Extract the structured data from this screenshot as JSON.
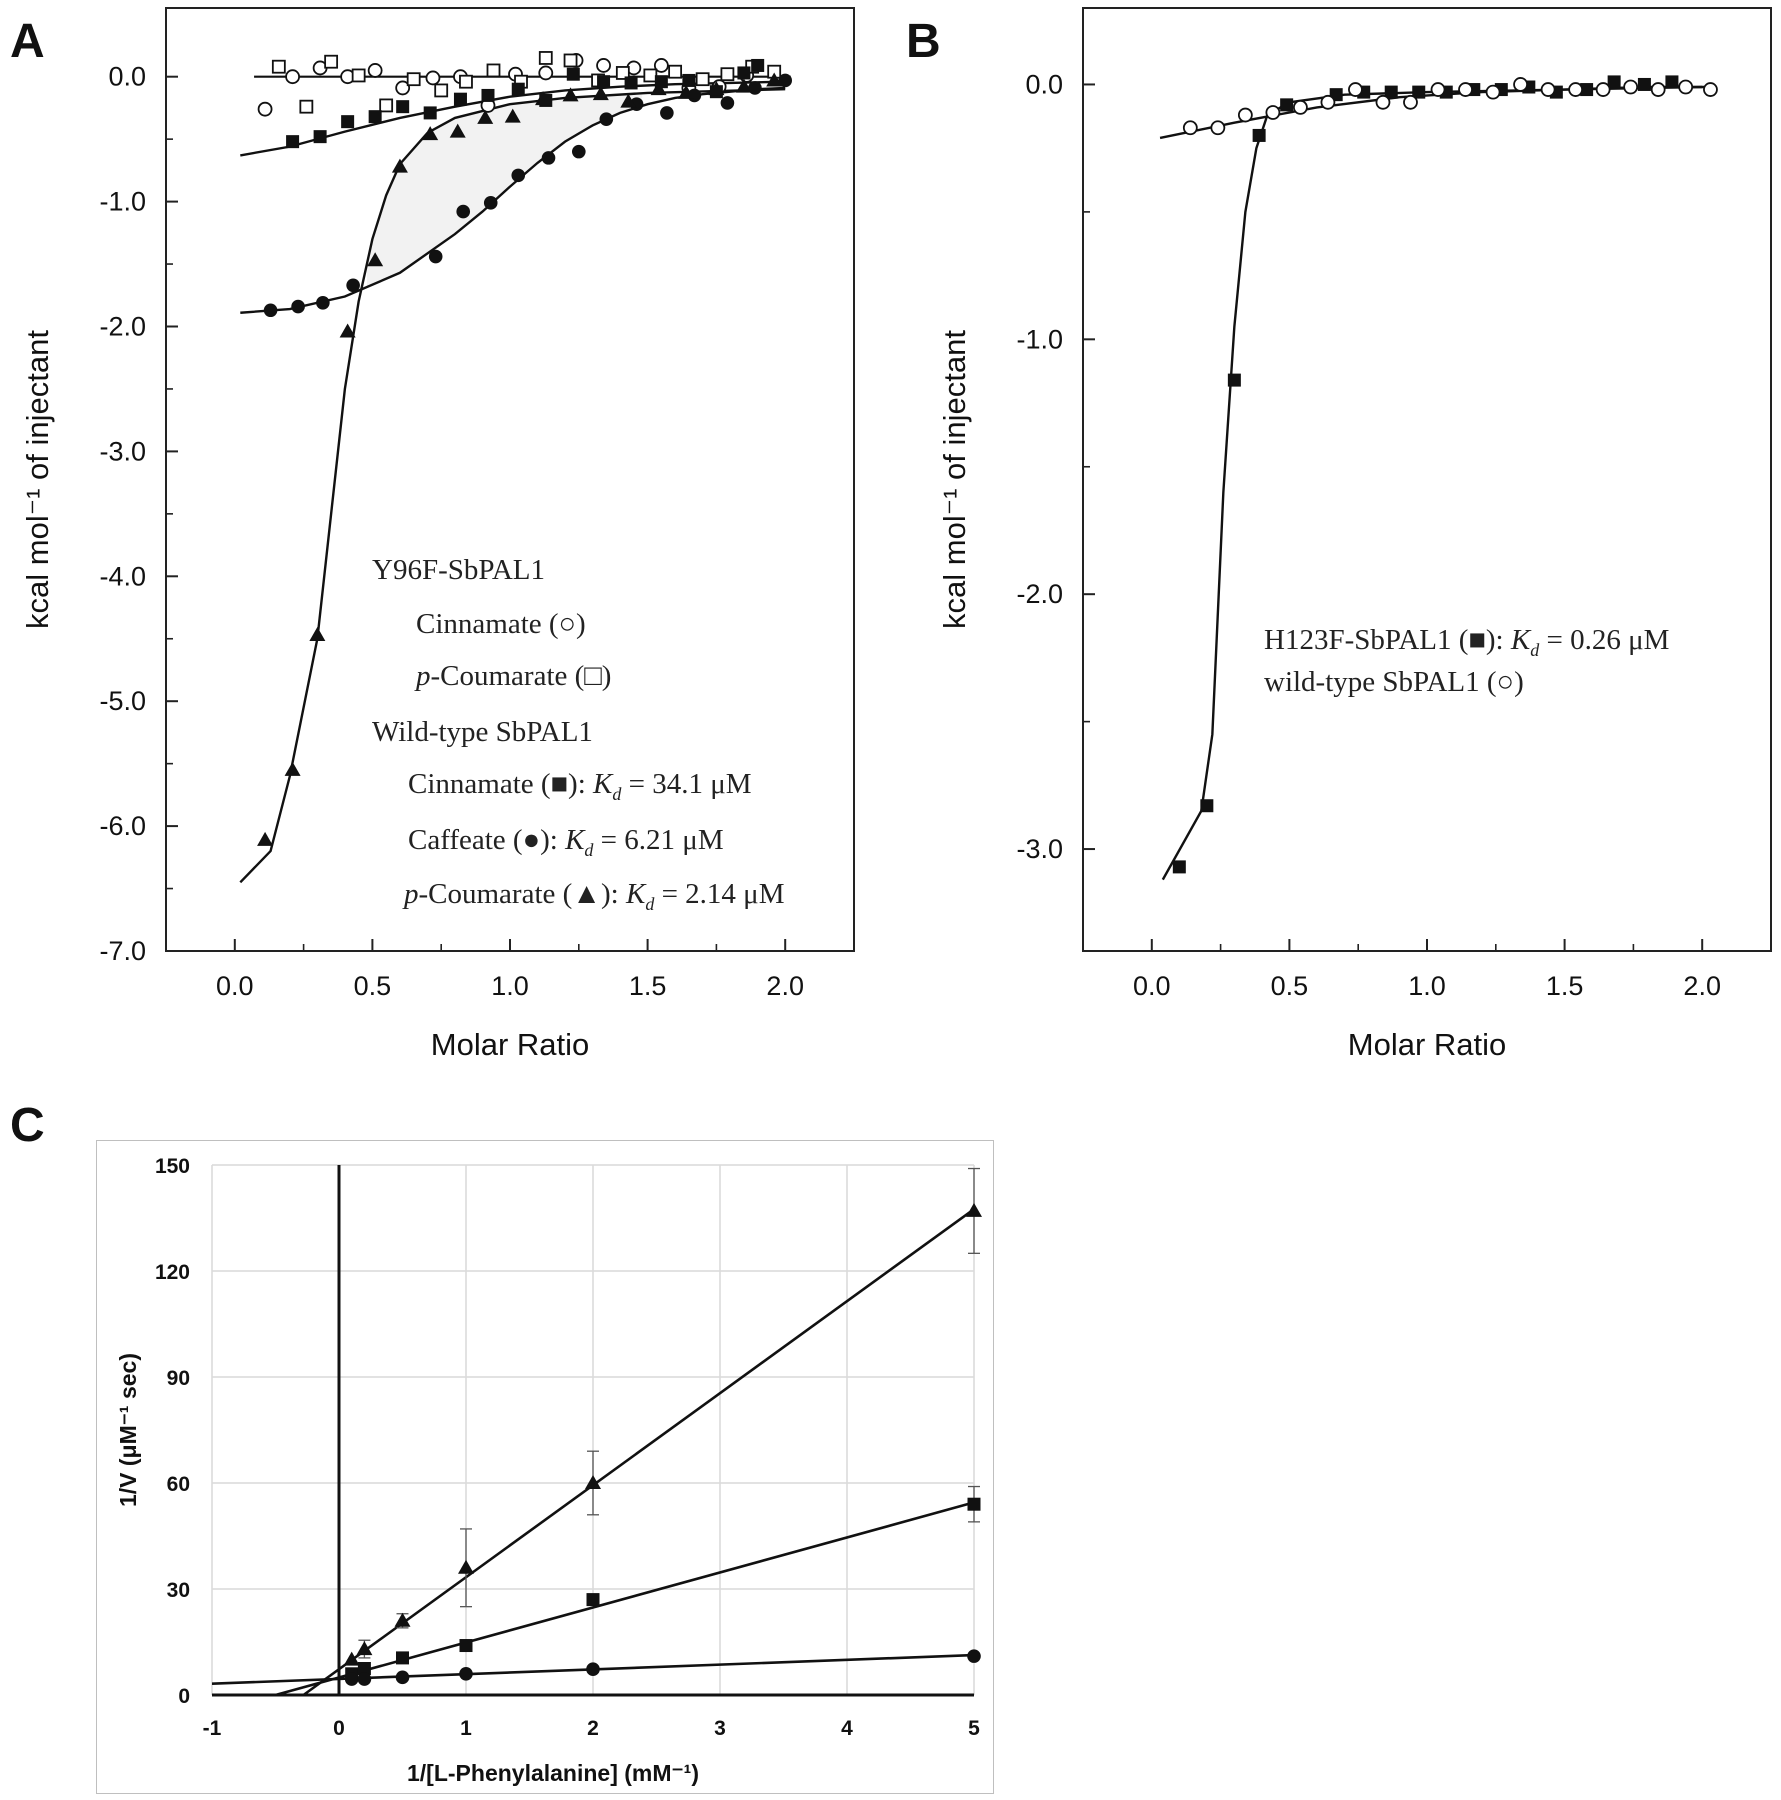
{
  "panels": {
    "A": {
      "letter": "A",
      "ylabel": "kcal mol⁻¹ of injectant",
      "xlabel": "Molar Ratio",
      "xlim": [
        -0.25,
        2.25
      ],
      "ylim": [
        -7.0,
        0.55
      ],
      "xticks": [
        "0.0",
        "0.5",
        "1.0",
        "1.5",
        "2.0"
      ],
      "yticks": [
        "0.0",
        "-1.0",
        "-2.0",
        "-3.0",
        "-4.0",
        "-5.0",
        "-6.0",
        "-7.0"
      ],
      "legend": {
        "group1_title": "Y96F-SbPAL1",
        "g1_item1": "Cinnamate (○)",
        "g1_item2_italic": "p",
        "g1_item2": "-Coumarate (□)",
        "group2_title": "Wild-type SbPAL1",
        "g2_item1_prefix": "Cinnamate (■): ",
        "g2_item1_kd": "= 34.1 μM",
        "g2_item2_prefix": "Caffeate (●): ",
        "g2_item2_kd": "= 6.21 μM",
        "g2_item3_italic": "p",
        "g2_item3_prefix": "-Coumarate (▲): ",
        "g2_item3_kd": "= 2.14 μM",
        "kd_symbol": "K",
        "kd_sub": "d"
      }
    },
    "B": {
      "letter": "B",
      "ylabel": "kcal mol⁻¹ of injectant",
      "xlabel": "Molar Ratio",
      "xlim": [
        -0.25,
        2.25
      ],
      "ylim": [
        -3.4,
        0.3
      ],
      "xticks": [
        "0.0",
        "0.5",
        "1.0",
        "1.5",
        "2.0"
      ],
      "yticks": [
        "0.0",
        "-1.0",
        "-2.0",
        "-3.0"
      ],
      "legend": {
        "item1_prefix": "H123F-SbPAL1 (■): ",
        "item1_kd": "= 0.26 μM",
        "item2": "wild-type SbPAL1 (○)",
        "kd_symbol": "K",
        "kd_sub": "d"
      }
    },
    "C": {
      "letter": "C",
      "ylabel": "1/V (μM⁻¹ sec)",
      "xlabel": "1/[L-Phenylalanine] (mM⁻¹)",
      "xlim": [
        -1,
        5
      ],
      "ylim": [
        0,
        150
      ],
      "xticks": [
        "-1",
        "0",
        "1",
        "2",
        "3",
        "4",
        "5"
      ],
      "yticks": [
        "0",
        "30",
        "60",
        "90",
        "120",
        "150"
      ]
    }
  },
  "chart_data": [
    {
      "panel": "A",
      "type": "scatter",
      "xlabel": "Molar Ratio",
      "ylabel": "kcal mol⁻¹ of injectant",
      "xlim": [
        -0.25,
        2.25
      ],
      "ylim": [
        -7.0,
        0.55
      ],
      "grid": false,
      "series": [
        {
          "name": "Y96F-SbPAL1 Cinnamate",
          "marker": "open-circle",
          "x": [
            0.11,
            0.21,
            0.31,
            0.41,
            0.51,
            0.61,
            0.72,
            0.82,
            0.92,
            1.02,
            1.13,
            1.24,
            1.34,
            1.45,
            1.55,
            1.65,
            1.76,
            1.86
          ],
          "y": [
            -0.26,
            0.0,
            0.07,
            0.0,
            0.05,
            -0.09,
            -0.01,
            0.0,
            -0.23,
            0.02,
            0.03,
            0.13,
            0.09,
            0.07,
            0.09,
            -0.09,
            -0.08,
            0.01
          ]
        },
        {
          "name": "Y96F-SbPAL1 p-Coumarate",
          "marker": "open-square",
          "x": [
            0.16,
            0.26,
            0.35,
            0.45,
            0.55,
            0.65,
            0.75,
            0.84,
            0.94,
            1.04,
            1.13,
            1.22,
            1.32,
            1.41,
            1.51,
            1.6,
            1.7,
            1.79,
            1.88,
            1.96
          ],
          "y": [
            0.08,
            -0.24,
            0.12,
            0.01,
            -0.23,
            -0.02,
            -0.11,
            -0.04,
            0.05,
            -0.04,
            0.15,
            0.13,
            -0.03,
            0.03,
            0.01,
            0.04,
            -0.02,
            0.02,
            0.08,
            0.04
          ]
        },
        {
          "name": "Wild-type SbPAL1 Cinnamate",
          "marker": "filled-square",
          "x": [
            0.21,
            0.31,
            0.41,
            0.51,
            0.61,
            0.71,
            0.82,
            0.92,
            1.03,
            1.13,
            1.23,
            1.34,
            1.44,
            1.55,
            1.65,
            1.75,
            1.85,
            1.9
          ],
          "y": [
            -0.52,
            -0.48,
            -0.36,
            -0.32,
            -0.24,
            -0.29,
            -0.18,
            -0.15,
            -0.1,
            -0.19,
            0.02,
            -0.04,
            -0.05,
            -0.04,
            -0.03,
            -0.12,
            0.03,
            0.09
          ],
          "fit_x": [
            0.02,
            0.2,
            0.4,
            0.6,
            0.8,
            1.0,
            1.2,
            1.4,
            1.6,
            1.8,
            2.0
          ],
          "fit_y": [
            -0.63,
            -0.56,
            -0.44,
            -0.33,
            -0.24,
            -0.16,
            -0.11,
            -0.08,
            -0.06,
            -0.05,
            -0.04
          ]
        },
        {
          "name": "Wild-type SbPAL1 Caffeate",
          "marker": "filled-circle",
          "x": [
            0.13,
            0.23,
            0.32,
            0.43,
            0.73,
            0.83,
            0.93,
            1.03,
            1.14,
            1.25,
            1.35,
            1.46,
            1.57,
            1.67,
            1.79,
            1.89,
            2.0
          ],
          "y": [
            -1.87,
            -1.84,
            -1.81,
            -1.67,
            -1.44,
            -1.08,
            -1.01,
            -0.79,
            -0.65,
            -0.6,
            -0.34,
            -0.22,
            -0.29,
            -0.15,
            -0.21,
            -0.09,
            -0.03
          ],
          "fit_x": [
            0.02,
            0.2,
            0.4,
            0.6,
            0.8,
            0.9,
            1.0,
            1.1,
            1.2,
            1.3,
            1.4,
            1.5,
            1.6,
            1.7,
            1.8,
            1.9,
            2.0
          ],
          "fit_y": [
            -1.89,
            -1.86,
            -1.76,
            -1.57,
            -1.26,
            -1.08,
            -0.88,
            -0.69,
            -0.52,
            -0.39,
            -0.29,
            -0.22,
            -0.17,
            -0.14,
            -0.12,
            -0.1,
            -0.09
          ]
        },
        {
          "name": "Wild-type SbPAL1 p-Coumarate",
          "marker": "filled-triangle",
          "x": [
            0.11,
            0.21,
            0.3,
            0.41,
            0.51,
            0.6,
            0.71,
            0.81,
            0.91,
            1.01,
            1.12,
            1.22,
            1.33,
            1.43,
            1.54,
            1.64,
            1.75,
            1.85,
            1.96
          ],
          "y": [
            -6.11,
            -5.55,
            -4.47,
            -2.04,
            -1.47,
            -0.72,
            -0.46,
            -0.44,
            -0.33,
            -0.32,
            -0.18,
            -0.15,
            -0.14,
            -0.2,
            -0.1,
            -0.13,
            -0.1,
            -0.08,
            -0.03
          ],
          "fit_x": [
            0.02,
            0.13,
            0.2,
            0.3,
            0.35,
            0.4,
            0.45,
            0.5,
            0.55,
            0.6,
            0.7,
            0.8,
            1.0,
            1.2,
            1.5,
            2.0
          ],
          "fit_y": [
            -6.45,
            -6.2,
            -5.6,
            -4.5,
            -3.5,
            -2.5,
            -1.8,
            -1.3,
            -0.95,
            -0.7,
            -0.45,
            -0.33,
            -0.22,
            -0.17,
            -0.13,
            -0.1
          ]
        }
      ],
      "baseline": {
        "x": [
          0.07,
          2.02
        ],
        "y": [
          0.0,
          0.0
        ]
      }
    },
    {
      "panel": "B",
      "type": "scatter",
      "xlabel": "Molar Ratio",
      "ylabel": "kcal mol⁻¹ of injectant",
      "xlim": [
        -0.25,
        2.25
      ],
      "ylim": [
        -3.4,
        0.3
      ],
      "grid": false,
      "series": [
        {
          "name": "H123F-SbPAL1",
          "marker": "filled-square",
          "x": [
            0.1,
            0.2,
            0.3,
            0.39,
            0.49,
            0.67,
            0.77,
            0.87,
            0.97,
            1.07,
            1.17,
            1.27,
            1.37,
            1.47,
            1.58,
            1.68,
            1.79,
            1.89
          ],
          "y": [
            -3.07,
            -2.83,
            -1.16,
            -0.2,
            -0.08,
            -0.04,
            -0.03,
            -0.03,
            -0.03,
            -0.03,
            -0.02,
            -0.02,
            -0.01,
            -0.03,
            -0.02,
            0.01,
            0.0,
            0.01
          ],
          "fit_x": [
            0.04,
            0.18,
            0.22,
            0.26,
            0.3,
            0.34,
            0.38,
            0.42,
            0.5,
            0.7,
            1.0,
            1.5,
            2.0
          ],
          "fit_y": [
            -3.12,
            -2.85,
            -2.55,
            -1.6,
            -0.95,
            -0.5,
            -0.25,
            -0.12,
            -0.07,
            -0.04,
            -0.03,
            -0.02,
            -0.01
          ]
        },
        {
          "name": "wild-type SbPAL1",
          "marker": "open-circle",
          "x": [
            0.14,
            0.24,
            0.34,
            0.44,
            0.54,
            0.64,
            0.74,
            0.84,
            0.94,
            1.04,
            1.14,
            1.24,
            1.34,
            1.44,
            1.54,
            1.64,
            1.74,
            1.84,
            1.94,
            2.03
          ],
          "y": [
            -0.17,
            -0.17,
            -0.12,
            -0.11,
            -0.09,
            -0.07,
            -0.02,
            -0.07,
            -0.07,
            -0.02,
            -0.02,
            -0.03,
            0.0,
            -0.02,
            -0.02,
            -0.02,
            -0.01,
            -0.02,
            -0.01,
            -0.02
          ],
          "fit_x": [
            0.03,
            0.3,
            0.6,
            0.9,
            1.2,
            1.5,
            1.8,
            2.03
          ],
          "fit_y": [
            -0.21,
            -0.15,
            -0.09,
            -0.05,
            -0.03,
            -0.02,
            -0.01,
            -0.01
          ]
        }
      ]
    },
    {
      "panel": "C",
      "type": "scatter",
      "xlabel": "1/[L-Phenylalanine] (mM⁻¹)",
      "ylabel": "1/V (μM⁻¹ sec)",
      "xlim": [
        -1,
        5
      ],
      "ylim": [
        0,
        150
      ],
      "grid": true,
      "series": [
        {
          "name": "",
          "marker": "filled-triangle",
          "x": [
            0.1,
            0.2,
            0.5,
            1,
            2,
            5
          ],
          "y": [
            10,
            13,
            21,
            36,
            60,
            137
          ],
          "err": [
            0,
            2.5,
            2,
            11,
            9,
            12
          ],
          "fit": {
            "x": [
              -0.28,
              5
            ],
            "y": [
              0,
              137.5
            ]
          }
        },
        {
          "name": "",
          "marker": "filled-square",
          "x": [
            0.1,
            0.2,
            0.5,
            1,
            2,
            5
          ],
          "y": [
            6,
            7.5,
            10.5,
            14,
            27,
            54
          ],
          "err": [
            0,
            0,
            0,
            0,
            0,
            5
          ],
          "fit": {
            "x": [
              -0.5,
              5
            ],
            "y": [
              0,
              54.5
            ]
          }
        },
        {
          "name": "",
          "marker": "filled-circle",
          "x": [
            0.1,
            0.2,
            0.5,
            1,
            2,
            5
          ],
          "y": [
            4.5,
            4.5,
            5,
            6,
            7.3,
            11
          ],
          "err": [
            0,
            0,
            0,
            0,
            0,
            0
          ],
          "fit": {
            "x": [
              -1,
              5
            ],
            "y": [
              3.2,
              11.3
            ]
          }
        }
      ]
    }
  ]
}
